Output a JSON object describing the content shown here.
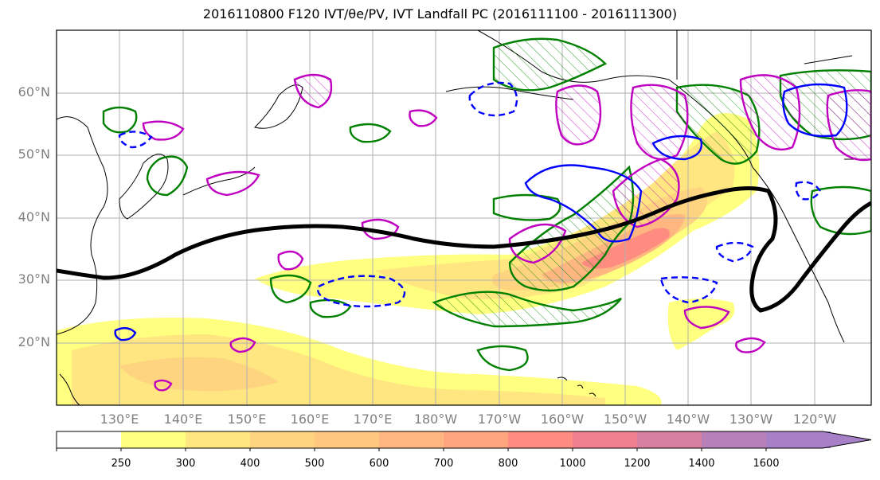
{
  "title": "2016110800 F120 IVT/θe/PV, IVT Landfall PC (2016111100 - 2016111300)",
  "latitude_labels": [
    "60°N",
    "50°N",
    "40°N",
    "30°N",
    "20°N"
  ],
  "longitude_labels": [
    "130°E",
    "140°E",
    "150°E",
    "160°E",
    "170°E",
    "180°W",
    "170°W",
    "160°W",
    "150°W",
    "140°W",
    "130°W",
    "120°W"
  ],
  "colorbar": {
    "tick_labels": [
      "250",
      "300",
      "400",
      "500",
      "600",
      "700",
      "800",
      "1000",
      "1200",
      "1400",
      "1600"
    ],
    "colors": [
      "#ffffff",
      "#ffff80",
      "#ffe680",
      "#ffd480",
      "#ffc780",
      "#ffb680",
      "#ffa680",
      "#ff8c80",
      "#f08090",
      "#d880a0",
      "#b880b8",
      "#a880c8"
    ]
  },
  "contour_colors": {
    "ivt_landfall_pc": "#000000",
    "theta_e_positive": "#008000",
    "theta_e_negative": "#0000ff",
    "pv": "#c000c0"
  }
}
